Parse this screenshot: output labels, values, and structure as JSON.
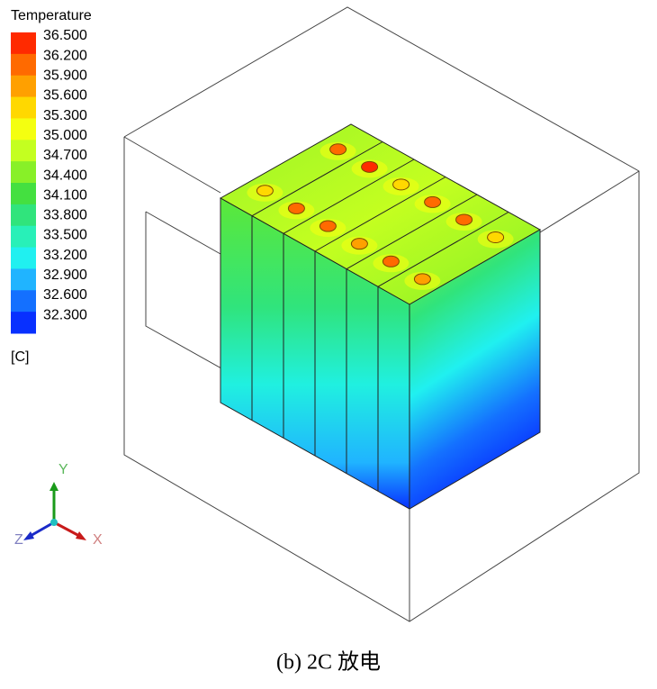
{
  "legend": {
    "title": "Temperature",
    "levels": [
      "36.500",
      "36.200",
      "35.900",
      "35.600",
      "35.300",
      "35.000",
      "34.700",
      "34.400",
      "34.100",
      "33.800",
      "33.500",
      "33.200",
      "32.900",
      "32.600",
      "32.300"
    ],
    "colors": [
      "#ff2a00",
      "#ff6a00",
      "#ffa000",
      "#ffd800",
      "#f4ff10",
      "#c4ff20",
      "#88f028",
      "#44e040",
      "#30e47c",
      "#28f0b8",
      "#20f0f0",
      "#20b4ff",
      "#1470ff",
      "#0830ff"
    ],
    "unit": "[C]"
  },
  "axes": {
    "y": "Y",
    "z": "Z",
    "x": "X"
  },
  "caption": "(b) 2C 放电"
}
